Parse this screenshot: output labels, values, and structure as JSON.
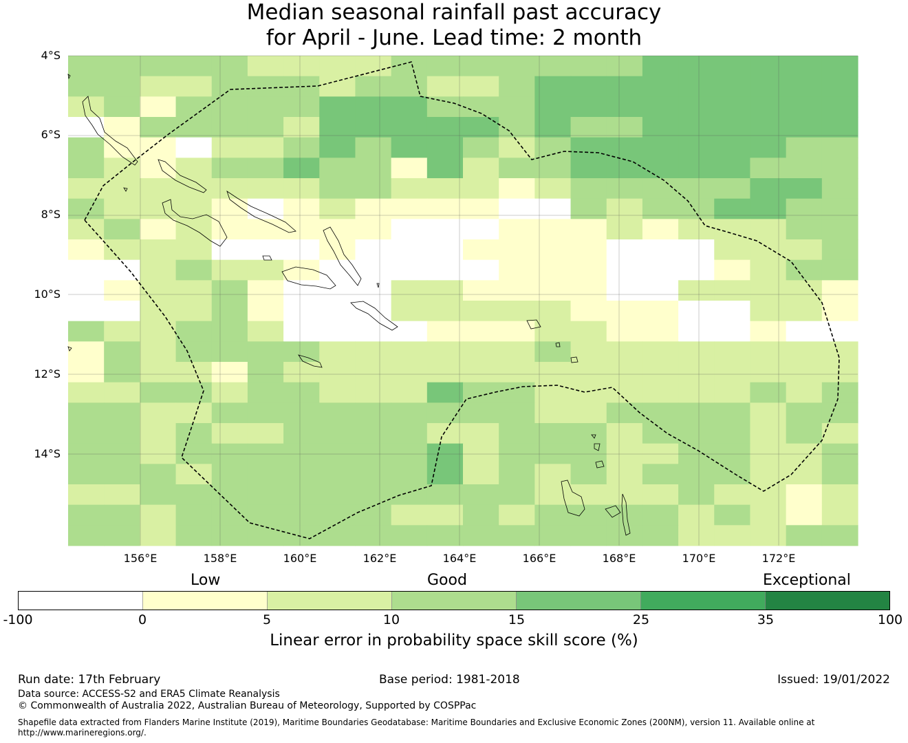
{
  "title": {
    "line1": "Median seasonal rainfall past accuracy",
    "line2": "for April - June. Lead time: 2 month"
  },
  "map": {
    "lat_labels": [
      "4°S",
      "6°S",
      "8°S",
      "10°S",
      "12°S",
      "14°S"
    ],
    "lon_labels": [
      "156°E",
      "158°E",
      "160°E",
      "162°E",
      "164°E",
      "166°E",
      "168°E",
      "170°E",
      "172°E"
    ],
    "grid_levels": [
      "3333322223333333444444",
      "3322333233223444444444",
      "2313333444333444444444",
      "0133332444443433444444",
      "3110223434432344444433",
      "3212334331423344444333",
      "2222222332221233333443",
      "3222101211110032334433",
      "2312111110001112122233",
      "1222000100011110002223",
      "0023221000001110001233",
      "0122310002211110022221",
      "0022310002222211100221",
      "3223320000111221100100",
      "1323333222222322222222",
      "1322132222222222222222",
      "2233233222433222222323",
      "3322333333333223333233",
      "3323223333223332333232",
      "3323333333423332233223",
      "3332333333423232333223",
      "2233333333333222232212",
      "3323333332232333323212",
      "3323333333333333322233"
    ]
  },
  "legend": {
    "category_low": "Low",
    "category_good": "Good",
    "category_exceptional": "Exceptional",
    "ticks": [
      "-100",
      "0",
      "5",
      "10",
      "15",
      "25",
      "35",
      "100"
    ],
    "colors": [
      "#ffffff",
      "#ffffcc",
      "#d9f0a3",
      "#addd8e",
      "#78c679",
      "#41ab5d",
      "#238443"
    ],
    "title": "Linear error in probability space skill score (%)"
  },
  "footer": {
    "run_date": "Run date: 17th February",
    "base_period": "Base period: 1981-2018",
    "issued": "Issued: 19/01/2022",
    "data_source": "Data source: ACCESS-S2 and ERA5 Climate Reanalysis",
    "copyright": "© Commonwealth of Australia 2022, Australian Bureau of Meteorology, Supported by COSPPac",
    "shapefile_line1": "Shapefile data extracted from Flanders Marine Institute (2019), Maritime Boundaries Geodatabase: Maritime Boundaries and Exclusive Economic Zones (200NM), version 11. Available online at",
    "shapefile_line2": "http://www.marineregions.org/."
  }
}
